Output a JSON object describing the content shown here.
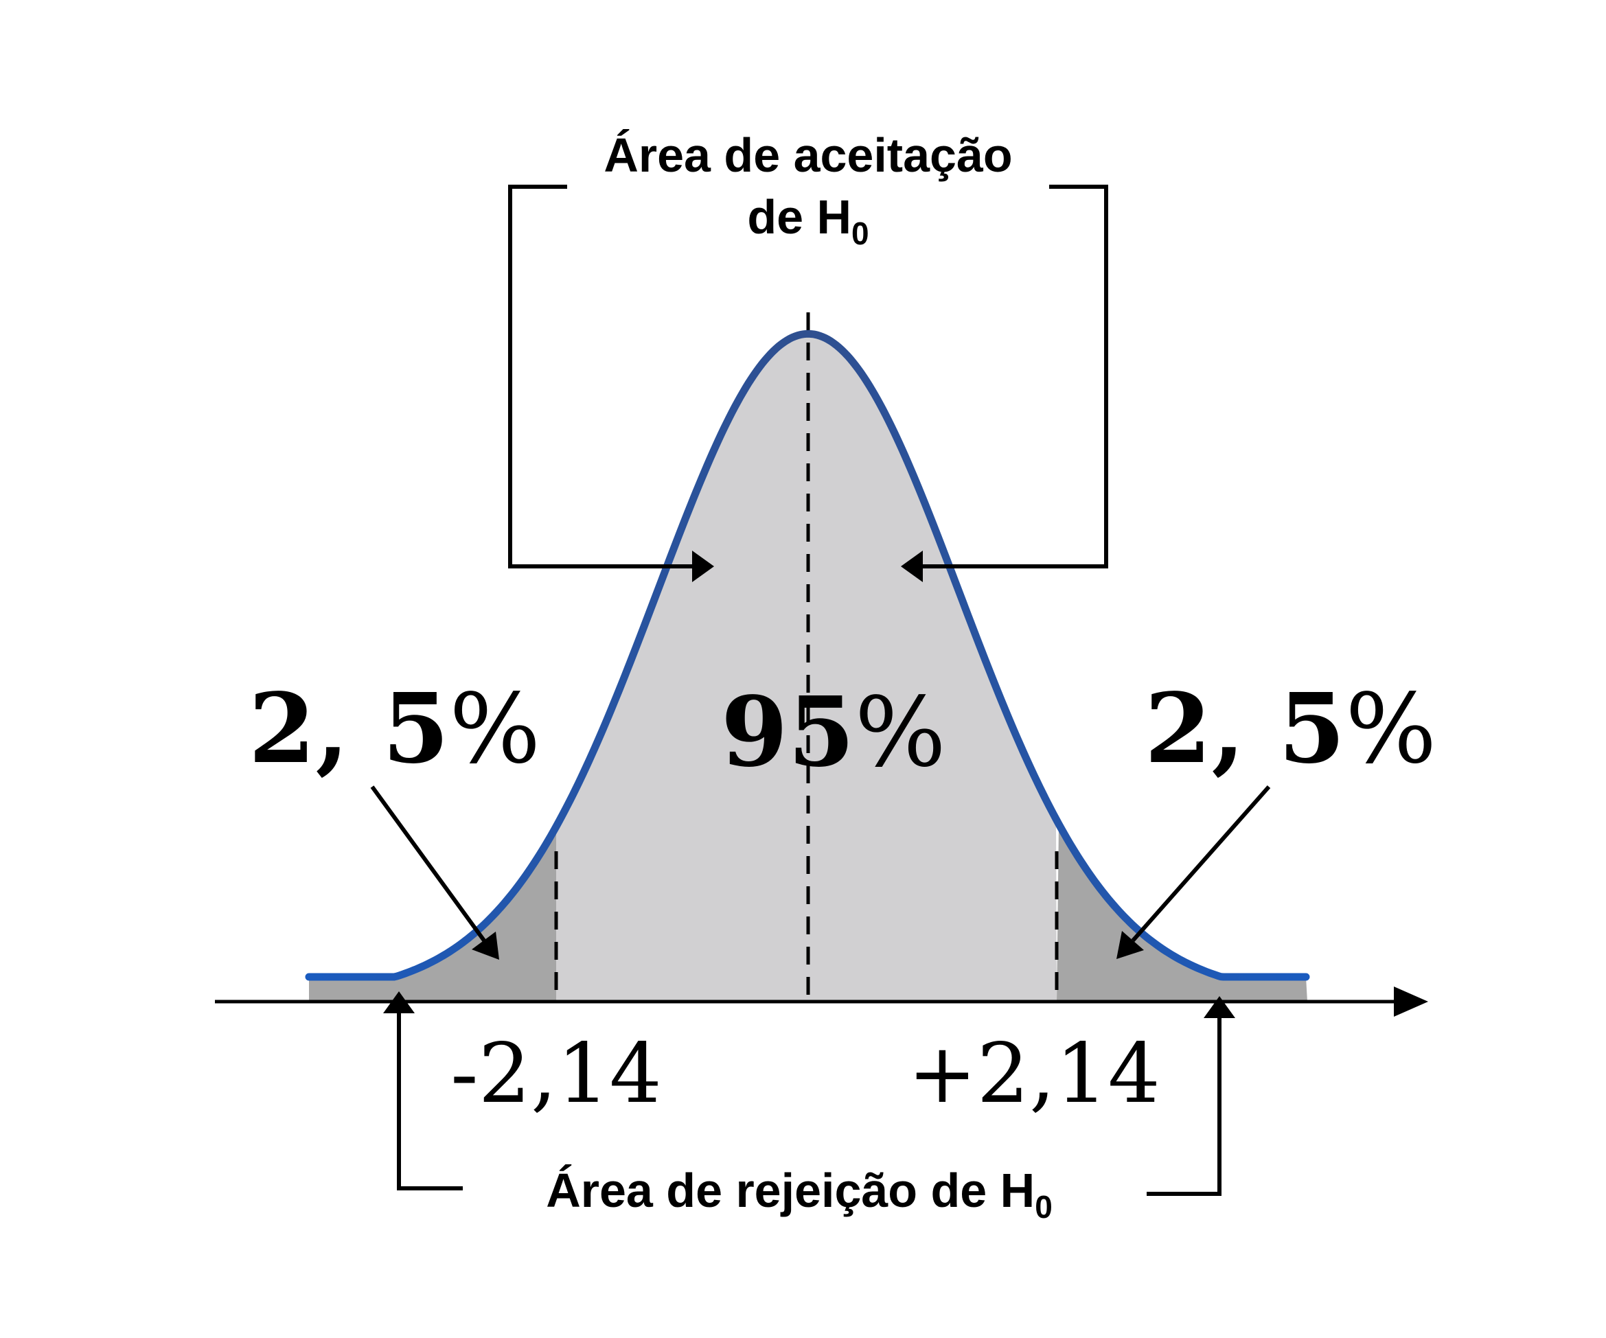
{
  "acceptance_label": {
    "line1": "Área de aceitação",
    "line2_main": "de H",
    "line2_sub": "0"
  },
  "rejection_label": {
    "main": "Área de rejeição de H",
    "sub": "0"
  },
  "percent_left": {
    "number": "2, 5",
    "symbol": "%"
  },
  "percent_center": {
    "number": "95",
    "symbol": "%"
  },
  "percent_right": {
    "number": "2, 5",
    "symbol": "%"
  },
  "critical_left": "-2,14",
  "critical_right": "+2,14",
  "colors": {
    "curve": "#1f4fa0",
    "acceptance_fill": "#d1d0d2",
    "rejection_fill": "#a6a6a6",
    "lines": "#000000"
  }
}
